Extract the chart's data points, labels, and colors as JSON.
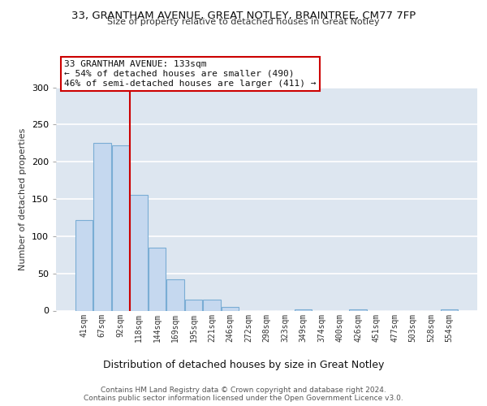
{
  "title1": "33, GRANTHAM AVENUE, GREAT NOTLEY, BRAINTREE, CM77 7FP",
  "title2": "Size of property relative to detached houses in Great Notley",
  "xlabel": "Distribution of detached houses by size in Great Notley",
  "ylabel": "Number of detached properties",
  "categories": [
    "41sqm",
    "67sqm",
    "92sqm",
    "118sqm",
    "144sqm",
    "169sqm",
    "195sqm",
    "221sqm",
    "246sqm",
    "272sqm",
    "298sqm",
    "323sqm",
    "349sqm",
    "374sqm",
    "400sqm",
    "426sqm",
    "451sqm",
    "477sqm",
    "503sqm",
    "528sqm",
    "554sqm"
  ],
  "values": [
    122,
    225,
    222,
    155,
    85,
    42,
    15,
    15,
    5,
    0,
    0,
    0,
    2,
    0,
    0,
    2,
    0,
    0,
    0,
    0,
    2
  ],
  "bar_color": "#c5d8ef",
  "bar_edge_color": "#7aadd4",
  "bg_color": "#dde6f0",
  "annotation_box_text": "33 GRANTHAM AVENUE: 133sqm\n← 54% of detached houses are smaller (490)\n46% of semi-detached houses are larger (411) →",
  "property_line_x": 2.5,
  "vline_color": "#cc0000",
  "ylim": [
    0,
    300
  ],
  "yticks": [
    0,
    50,
    100,
    150,
    200,
    250,
    300
  ],
  "footer": "Contains HM Land Registry data © Crown copyright and database right 2024.\nContains public sector information licensed under the Open Government Licence v3.0."
}
